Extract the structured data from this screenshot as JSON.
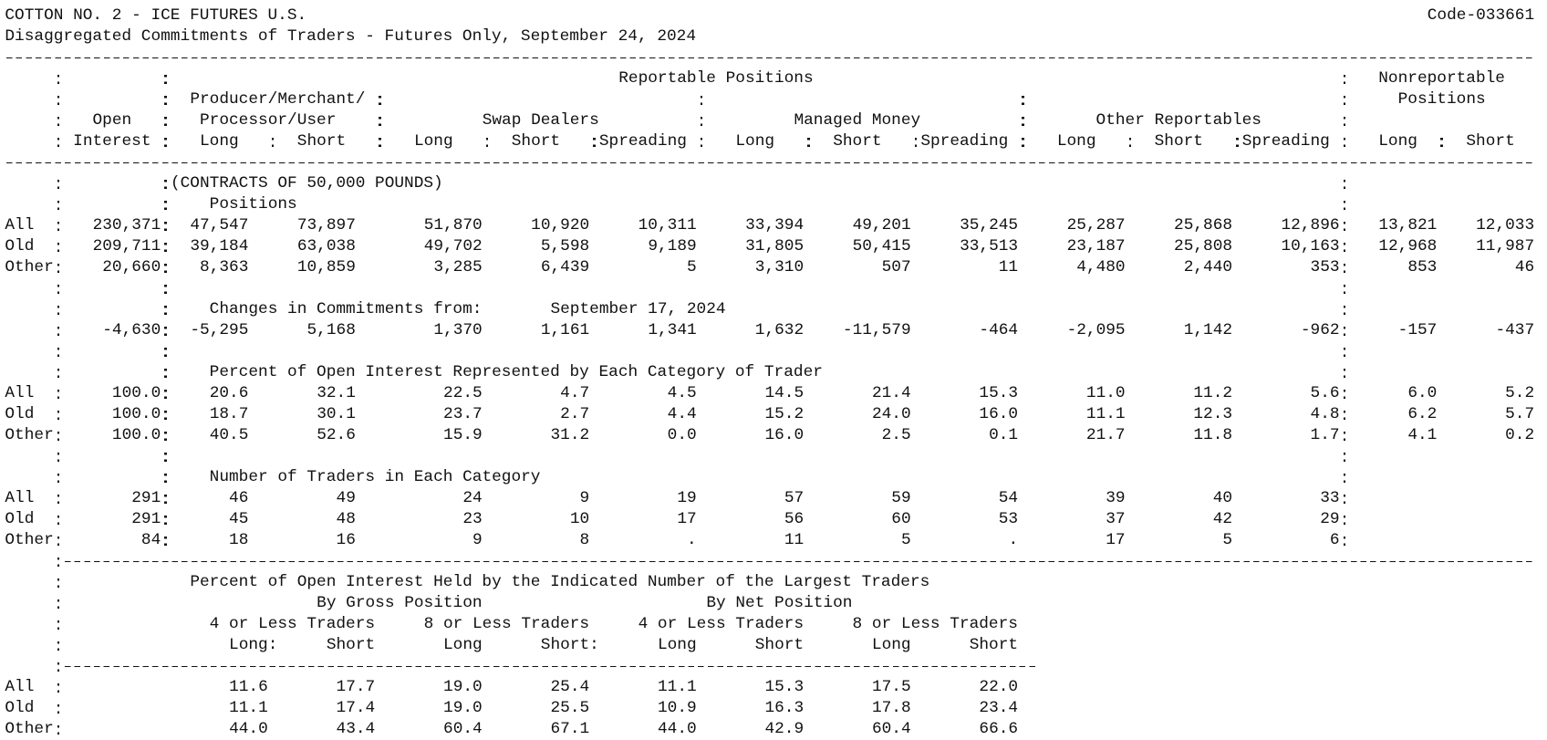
{
  "header": {
    "title": "COTTON NO. 2 - ICE FUTURES U.S.",
    "code": "Code-033661",
    "subtitle": "Disaggregated Commitments of Traders - Futures Only, September 24, 2024"
  },
  "columns": {
    "reportable": "Reportable Positions",
    "nonreportable": [
      "Nonreportable",
      "Positions"
    ],
    "open_interest": [
      "Open",
      "Interest"
    ],
    "producer": [
      "Producer/Merchant/",
      "Processor/User"
    ],
    "swap": "Swap Dealers",
    "managed": "Managed Money",
    "other": "Other Reportables",
    "subcolumns": [
      "Long",
      "Short",
      "Long",
      "Short",
      "Spreading",
      "Long",
      "Short",
      "Spreading",
      "Long",
      "Short",
      "Spreading",
      "Long",
      "Short"
    ]
  },
  "units": "(CONTRACTS OF 50,000 POUNDS)",
  "positions": {
    "title": "Positions",
    "rows": [
      {
        "label": "All",
        "values": [
          "230,371",
          "47,547",
          "73,897",
          "51,870",
          "10,920",
          "10,311",
          "33,394",
          "49,201",
          "35,245",
          "25,287",
          "25,868",
          "12,896",
          "13,821",
          "12,033"
        ]
      },
      {
        "label": "Old",
        "values": [
          "209,711",
          "39,184",
          "63,038",
          "49,702",
          "5,598",
          "9,189",
          "31,805",
          "50,415",
          "33,513",
          "23,187",
          "25,808",
          "10,163",
          "12,968",
          "11,987"
        ]
      },
      {
        "label": "Other",
        "values": [
          "20,660",
          "8,363",
          "10,859",
          "3,285",
          "6,439",
          "5",
          "3,310",
          "507",
          "11",
          "4,480",
          "2,440",
          "353",
          "853",
          "46"
        ]
      }
    ]
  },
  "changes": {
    "title": "Changes in Commitments from:",
    "date": "September 17, 2024",
    "values": [
      "-4,630",
      "-5,295",
      "5,168",
      "1,370",
      "1,161",
      "1,341",
      "1,632",
      "-11,579",
      "-464",
      "-2,095",
      "1,142",
      "-962",
      "-157",
      "-437"
    ]
  },
  "percent": {
    "title": "Percent of Open Interest Represented by Each Category of Trader",
    "rows": [
      {
        "label": "All",
        "values": [
          "100.0",
          "20.6",
          "32.1",
          "22.5",
          "4.7",
          "4.5",
          "14.5",
          "21.4",
          "15.3",
          "11.0",
          "11.2",
          "5.6",
          "6.0",
          "5.2"
        ]
      },
      {
        "label": "Old",
        "values": [
          "100.0",
          "18.7",
          "30.1",
          "23.7",
          "2.7",
          "4.4",
          "15.2",
          "24.0",
          "16.0",
          "11.1",
          "12.3",
          "4.8",
          "6.2",
          "5.7"
        ]
      },
      {
        "label": "Other",
        "values": [
          "100.0",
          "40.5",
          "52.6",
          "15.9",
          "31.2",
          "0.0",
          "16.0",
          "2.5",
          "0.1",
          "21.7",
          "11.8",
          "1.7",
          "4.1",
          "0.2"
        ]
      }
    ]
  },
  "traders": {
    "title": "Number of Traders in Each Category",
    "rows": [
      {
        "label": "All",
        "values": [
          "291",
          "46",
          "49",
          "24",
          "9",
          "19",
          "57",
          "59",
          "54",
          "39",
          "40",
          "33"
        ]
      },
      {
        "label": "Old",
        "values": [
          "291",
          "45",
          "48",
          "23",
          "10",
          "17",
          "56",
          "60",
          "53",
          "37",
          "42",
          "29"
        ]
      },
      {
        "label": "Other",
        "values": [
          "84",
          "18",
          "16",
          "9",
          "8",
          ".",
          "11",
          "5",
          ".",
          "17",
          "5",
          "6"
        ]
      }
    ]
  },
  "concentration": {
    "title": "Percent of Open Interest Held by the Indicated Number of the Largest Traders",
    "gross": "By Gross Position",
    "net": "By Net Position",
    "groups": [
      "4 or Less Traders",
      "8 or Less Traders",
      "4 or Less Traders",
      "8 or Less Traders"
    ],
    "subcolumns": [
      "Long:",
      "Short",
      "Long",
      "Short:",
      "Long",
      "Short",
      "Long",
      "Short"
    ],
    "rows": [
      {
        "label": "All",
        "values": [
          "11.6",
          "17.7",
          "19.0",
          "25.4",
          "11.1",
          "15.3",
          "17.5",
          "22.0"
        ]
      },
      {
        "label": "Old",
        "values": [
          "11.1",
          "17.4",
          "19.0",
          "25.5",
          "10.9",
          "16.3",
          "17.8",
          "23.4"
        ]
      },
      {
        "label": "Other",
        "values": [
          "44.0",
          "43.4",
          "60.4",
          "67.1",
          "44.0",
          "42.9",
          "60.4",
          "66.6"
        ]
      }
    ]
  }
}
